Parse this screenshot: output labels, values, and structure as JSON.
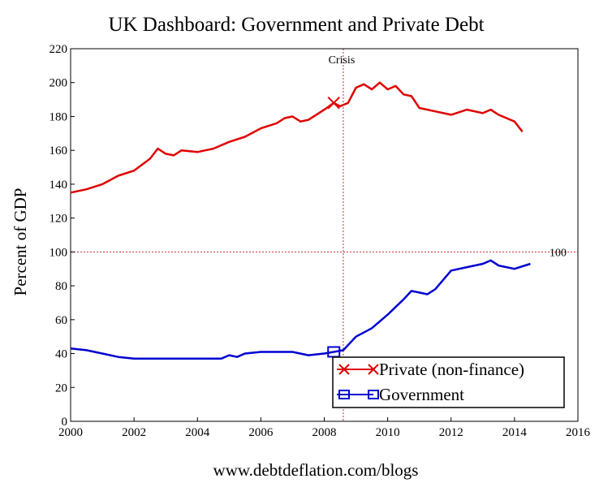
{
  "chart_data": {
    "type": "line",
    "title": "UK Dashboard: Government and Private Debt",
    "xlabel": "",
    "ylabel": "Percent of GDP",
    "footer": "www.debtdeflation.com/blogs",
    "xlim": [
      2000,
      2016
    ],
    "ylim": [
      0,
      220
    ],
    "x_ticks": [
      2000,
      2002,
      2004,
      2006,
      2008,
      2010,
      2012,
      2014,
      2016
    ],
    "y_ticks": [
      0,
      20,
      40,
      60,
      80,
      100,
      120,
      140,
      160,
      180,
      200,
      220
    ],
    "grid": false,
    "legend_position": "bottom-right",
    "reference_lines": [
      {
        "orientation": "horizontal",
        "value": 100,
        "label": "100",
        "color": "#c03030",
        "style": "dotted"
      },
      {
        "orientation": "vertical",
        "value": 2008.6,
        "label": "Crisis",
        "color": "#c03030",
        "style": "dotted"
      }
    ],
    "series": [
      {
        "name": "Private (non-finance)",
        "color": "#e00000",
        "marker": "x",
        "marker_at": [
          2008.3,
          188
        ],
        "x": [
          2000,
          2000.5,
          2001,
          2001.5,
          2002,
          2002.5,
          2002.75,
          2003,
          2003.25,
          2003.5,
          2004,
          2004.5,
          2005,
          2005.5,
          2006,
          2006.5,
          2006.75,
          2007,
          2007.25,
          2007.5,
          2008,
          2008.3,
          2008.5,
          2008.75,
          2009,
          2009.25,
          2009.5,
          2009.75,
          2010,
          2010.25,
          2010.5,
          2010.75,
          2011,
          2011.5,
          2012,
          2012.5,
          2013,
          2013.25,
          2013.5,
          2014,
          2014.25
        ],
        "values": [
          135,
          137,
          140,
          145,
          148,
          155,
          161,
          158,
          157,
          160,
          159,
          161,
          165,
          168,
          173,
          176,
          179,
          180,
          177,
          178,
          184,
          188,
          186,
          188,
          197,
          199,
          196,
          200,
          196,
          198,
          193,
          192,
          185,
          183,
          181,
          184,
          182,
          184,
          181,
          177,
          171
        ]
      },
      {
        "name": "Government",
        "color": "#0000d0",
        "marker": "square",
        "marker_at": [
          2008.3,
          41
        ],
        "x": [
          2000,
          2000.5,
          2001,
          2001.5,
          2002,
          2002.5,
          2003,
          2003.5,
          2004,
          2004.5,
          2004.75,
          2005,
          2005.25,
          2005.5,
          2006,
          2006.5,
          2007,
          2007.5,
          2008,
          2008.3,
          2008.6,
          2009,
          2009.5,
          2010,
          2010.5,
          2010.75,
          2011,
          2011.25,
          2011.5,
          2012,
          2012.5,
          2013,
          2013.25,
          2013.5,
          2014,
          2014.5
        ],
        "values": [
          43,
          42,
          40,
          38,
          37,
          37,
          37,
          37,
          37,
          37,
          37,
          39,
          38,
          40,
          41,
          41,
          41,
          39,
          40,
          41,
          42,
          50,
          55,
          63,
          72,
          77,
          76,
          75,
          78,
          89,
          91,
          93,
          95,
          92,
          90,
          93
        ]
      }
    ]
  }
}
